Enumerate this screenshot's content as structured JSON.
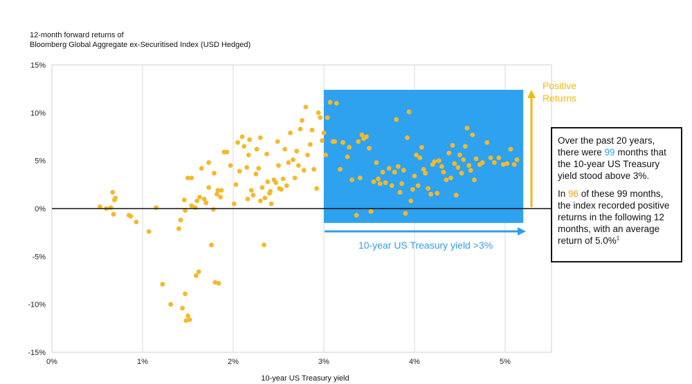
{
  "chart_data": {
    "type": "scatter",
    "title_line1": "12-month forward returns of",
    "title_line2": "Bloomberg Global Aggregate ex-Securitised Index (USD Hedged)",
    "xlabel": "10-year US Treasury yield",
    "xlim": [
      0,
      5.5
    ],
    "ylim": [
      -15,
      15
    ],
    "x_ticks": [
      "0%",
      "1%",
      "2%",
      "3%",
      "4%",
      "5%"
    ],
    "y_ticks": [
      "15%",
      "10%",
      "5%",
      "0%",
      "-5%",
      "-10%",
      "-15%"
    ],
    "grid": "vertical",
    "point_color": "#f6b82a",
    "highlight_color": "#2ea2ee",
    "highlight_region": {
      "x": [
        3.0,
        5.2
      ],
      "y": [
        -1.5,
        12.4
      ]
    },
    "points": [
      [
        0.53,
        0.2
      ],
      [
        0.6,
        0.0
      ],
      [
        0.65,
        0.1
      ],
      [
        0.67,
        1.7
      ],
      [
        0.69,
        0.9
      ],
      [
        0.7,
        1.1
      ],
      [
        0.68,
        -0.6
      ],
      [
        0.85,
        -0.7
      ],
      [
        0.87,
        -0.8
      ],
      [
        0.93,
        -1.4
      ],
      [
        1.07,
        -2.4
      ],
      [
        1.15,
        0.1
      ],
      [
        1.22,
        -7.9
      ],
      [
        1.31,
        -10.0
      ],
      [
        1.4,
        -2.1
      ],
      [
        1.42,
        -1.2
      ],
      [
        1.44,
        -10.4
      ],
      [
        1.47,
        -8.9
      ],
      [
        1.48,
        -11.7
      ],
      [
        1.5,
        -11.2
      ],
      [
        1.52,
        -11.6
      ],
      [
        1.46,
        0.9
      ],
      [
        1.47,
        -0.2
      ],
      [
        1.5,
        3.2
      ],
      [
        1.54,
        3.2
      ],
      [
        1.54,
        0.3
      ],
      [
        1.58,
        0.1
      ],
      [
        1.59,
        -7.0
      ],
      [
        1.62,
        -6.6
      ],
      [
        1.6,
        0.8
      ],
      [
        1.63,
        1.2
      ],
      [
        1.65,
        4.2
      ],
      [
        1.68,
        1.0
      ],
      [
        1.7,
        0.6
      ],
      [
        1.73,
        2.2
      ],
      [
        1.73,
        4.8
      ],
      [
        1.76,
        -3.8
      ],
      [
        1.78,
        -0.1
      ],
      [
        1.79,
        3.7
      ],
      [
        1.8,
        -7.7
      ],
      [
        1.82,
        1.5
      ],
      [
        1.83,
        1.9
      ],
      [
        1.86,
        1.2
      ],
      [
        1.84,
        -7.8
      ],
      [
        1.87,
        1.9
      ],
      [
        1.9,
        5.9
      ],
      [
        1.93,
        5.9
      ],
      [
        1.97,
        4.5
      ],
      [
        2.01,
        0.5
      ],
      [
        2.03,
        2.5
      ],
      [
        2.05,
        6.9
      ],
      [
        2.07,
        3.9
      ],
      [
        2.1,
        7.5
      ],
      [
        2.12,
        6.5
      ],
      [
        2.15,
        4.3
      ],
      [
        2.16,
        1.0
      ],
      [
        2.17,
        5.6
      ],
      [
        2.18,
        7.2
      ],
      [
        2.2,
        1.9
      ],
      [
        2.22,
        1.4
      ],
      [
        2.25,
        3.6
      ],
      [
        2.26,
        6.2
      ],
      [
        2.28,
        4.2
      ],
      [
        2.3,
        7.4
      ],
      [
        2.3,
        0.8
      ],
      [
        2.32,
        2.2
      ],
      [
        2.34,
        -3.8
      ],
      [
        2.35,
        1.1
      ],
      [
        2.37,
        5.7
      ],
      [
        2.38,
        2.8
      ],
      [
        2.4,
        1.6
      ],
      [
        2.41,
        1.8
      ],
      [
        2.42,
        0.5
      ],
      [
        2.45,
        3.0
      ],
      [
        2.47,
        2.7
      ],
      [
        2.49,
        7.0
      ],
      [
        2.5,
        4.5
      ],
      [
        2.51,
        2.1
      ],
      [
        2.53,
        2.0
      ],
      [
        2.55,
        3.1
      ],
      [
        2.57,
        6.2
      ],
      [
        2.59,
        2.4
      ],
      [
        2.61,
        4.8
      ],
      [
        2.63,
        7.9
      ],
      [
        2.66,
        5.1
      ],
      [
        2.68,
        3.2
      ],
      [
        2.7,
        6.0
      ],
      [
        2.72,
        4.5
      ],
      [
        2.74,
        8.3
      ],
      [
        2.76,
        9.2
      ],
      [
        2.78,
        4.0
      ],
      [
        2.8,
        10.6
      ],
      [
        2.82,
        5.6
      ],
      [
        2.85,
        6.7
      ],
      [
        2.87,
        8.2
      ],
      [
        2.89,
        4.1
      ],
      [
        2.92,
        2.1
      ],
      [
        2.94,
        10.0
      ],
      [
        2.96,
        9.5
      ],
      [
        2.98,
        7.1
      ],
      [
        3.0,
        7.9
      ],
      [
        3.02,
        5.6
      ],
      [
        3.04,
        9.5
      ],
      [
        3.07,
        11.1
      ],
      [
        3.1,
        7.0
      ],
      [
        3.12,
        7.0
      ],
      [
        3.14,
        11.0
      ],
      [
        3.18,
        4.1
      ],
      [
        3.21,
        6.9
      ],
      [
        3.26,
        5.4
      ],
      [
        3.28,
        6.4
      ],
      [
        3.31,
        3.0
      ],
      [
        3.36,
        -0.7
      ],
      [
        3.38,
        7.0
      ],
      [
        3.4,
        3.2
      ],
      [
        3.42,
        7.7
      ],
      [
        3.44,
        7.3
      ],
      [
        3.47,
        7.5
      ],
      [
        3.5,
        6.3
      ],
      [
        3.52,
        -0.3
      ],
      [
        3.55,
        2.8
      ],
      [
        3.58,
        4.8
      ],
      [
        3.6,
        3.1
      ],
      [
        3.62,
        2.6
      ],
      [
        3.65,
        3.8
      ],
      [
        3.68,
        2.7
      ],
      [
        3.72,
        4.2
      ],
      [
        3.75,
        2.4
      ],
      [
        3.78,
        3.8
      ],
      [
        3.8,
        9.3
      ],
      [
        3.82,
        4.4
      ],
      [
        3.84,
        1.7
      ],
      [
        3.86,
        2.6
      ],
      [
        3.88,
        4.0
      ],
      [
        3.9,
        -0.5
      ],
      [
        3.92,
        7.4
      ],
      [
        3.94,
        10.1
      ],
      [
        3.96,
        0.8
      ],
      [
        3.98,
        2.0
      ],
      [
        4.0,
        3.4
      ],
      [
        4.02,
        5.6
      ],
      [
        4.04,
        2.4
      ],
      [
        4.06,
        5.3
      ],
      [
        4.08,
        6.4
      ],
      [
        4.1,
        4.1
      ],
      [
        4.12,
        3.7
      ],
      [
        4.15,
        2.1
      ],
      [
        4.18,
        1.5
      ],
      [
        4.2,
        4.6
      ],
      [
        4.22,
        4.9
      ],
      [
        4.25,
        1.6
      ],
      [
        4.27,
        5.0
      ],
      [
        4.3,
        4.4
      ],
      [
        4.32,
        3.8
      ],
      [
        4.35,
        3.0
      ],
      [
        4.38,
        5.8
      ],
      [
        4.4,
        3.2
      ],
      [
        4.42,
        6.6
      ],
      [
        4.44,
        4.7
      ],
      [
        4.46,
        1.4
      ],
      [
        4.48,
        4.3
      ],
      [
        4.5,
        5.6
      ],
      [
        4.52,
        3.7
      ],
      [
        4.54,
        5.1
      ],
      [
        4.56,
        6.5
      ],
      [
        4.58,
        8.4
      ],
      [
        4.6,
        4.5
      ],
      [
        4.62,
        4.0
      ],
      [
        4.64,
        7.7
      ],
      [
        4.66,
        3.0
      ],
      [
        4.68,
        5.2
      ],
      [
        4.72,
        4.6
      ],
      [
        4.75,
        4.8
      ],
      [
        4.8,
        6.9
      ],
      [
        4.84,
        5.3
      ],
      [
        4.88,
        4.8
      ],
      [
        4.93,
        5.3
      ],
      [
        4.98,
        4.6
      ],
      [
        5.02,
        4.7
      ],
      [
        5.06,
        6.2
      ],
      [
        5.1,
        4.6
      ],
      [
        5.13,
        5.1
      ]
    ],
    "annotations": {
      "callout": "Positive",
      "callout2": "Returns",
      "range_label": "10-year US Treasury yield >3%"
    }
  },
  "info": {
    "p1_a": "Over the past 20 years, there were ",
    "p1_num": "99",
    "p1_b": " months that the 10-year US Treasury yield stood above 3%.",
    "p2_a": "In ",
    "p2_num": "96",
    "p2_b": " of these 99 months, the index recorded positive returns in the following 12 months, with an average return of 5.0%",
    "p2_sup": "1"
  }
}
